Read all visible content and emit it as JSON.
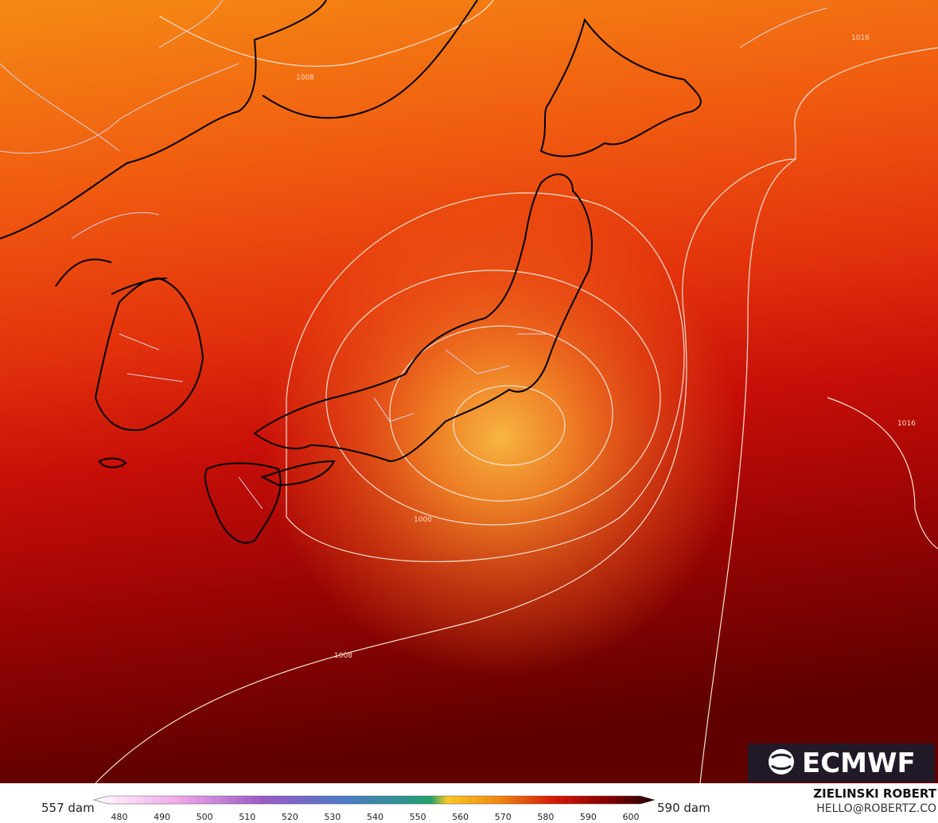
{
  "map": {
    "contour_labels": [
      "1016",
      "1008",
      "1000",
      "1016",
      "1008"
    ]
  },
  "legend": {
    "min_label": "557 dam",
    "max_label": "590 dam",
    "ticks": [
      480,
      490,
      500,
      510,
      520,
      530,
      540,
      550,
      560,
      570,
      580,
      590,
      600
    ]
  },
  "logo": "ECMWF",
  "credit": {
    "name": "ZIELINSKI ROBERT",
    "email": "HELLO@ROBERTZ.CO"
  }
}
